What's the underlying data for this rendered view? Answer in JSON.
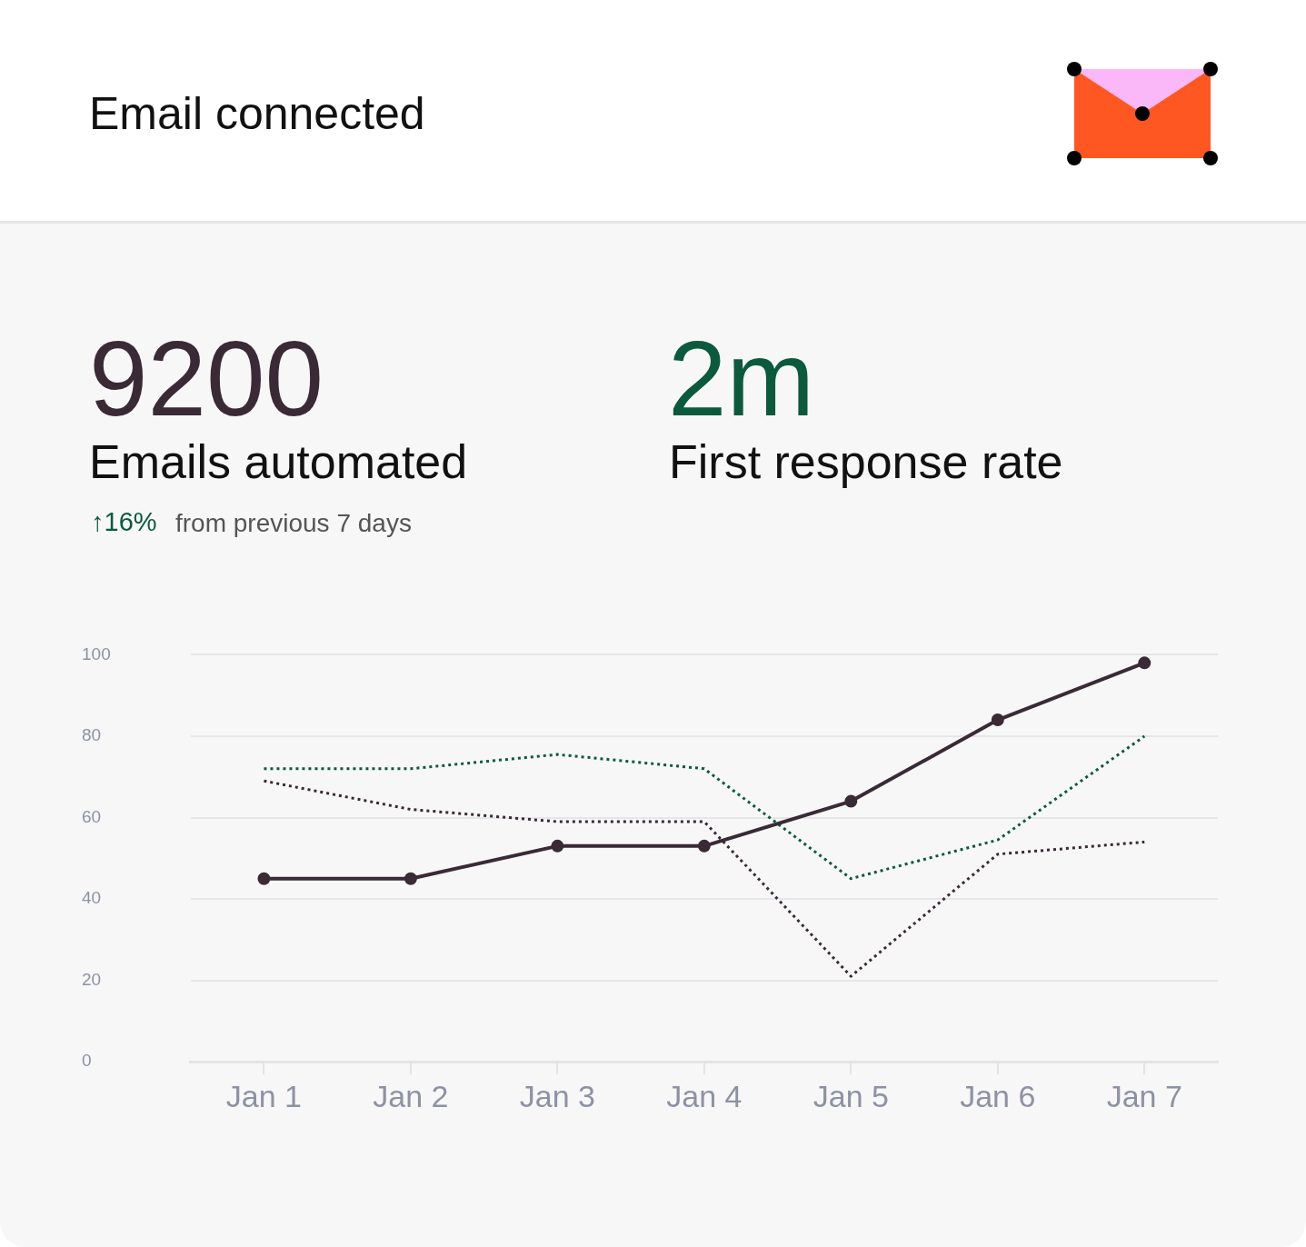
{
  "chart_data": {
    "type": "line",
    "title": "Email connected",
    "annotations": [
      "9200",
      "Emails automated",
      "↑16%",
      "from previous 7 days",
      "2m",
      "First response rate"
    ],
    "categories": [
      "Jan 1",
      "Jan 2",
      "Jan 3",
      "Jan 4",
      "Jan 5",
      "Jan 6",
      "Jan 7"
    ],
    "series": [
      {
        "color": "#3a2a35",
        "values": [
          45,
          45,
          53,
          53,
          64,
          84,
          98
        ],
        "line_style": "solid",
        "marker": "circle"
      },
      {
        "color": "#0b5a3e",
        "values": [
          72,
          72,
          75.5,
          72,
          45,
          54.5,
          80
        ],
        "line_style": "dotted",
        "marker": "none"
      },
      {
        "color": "#3a2a35",
        "values": [
          69,
          62,
          59,
          59,
          21,
          51,
          54
        ],
        "line_style": "dotted",
        "marker": "none"
      }
    ],
    "ylim": [
      0,
      100
    ],
    "yticks": [
      0,
      20,
      40,
      60,
      80,
      100
    ],
    "grid": "y",
    "legend": false
  }
}
